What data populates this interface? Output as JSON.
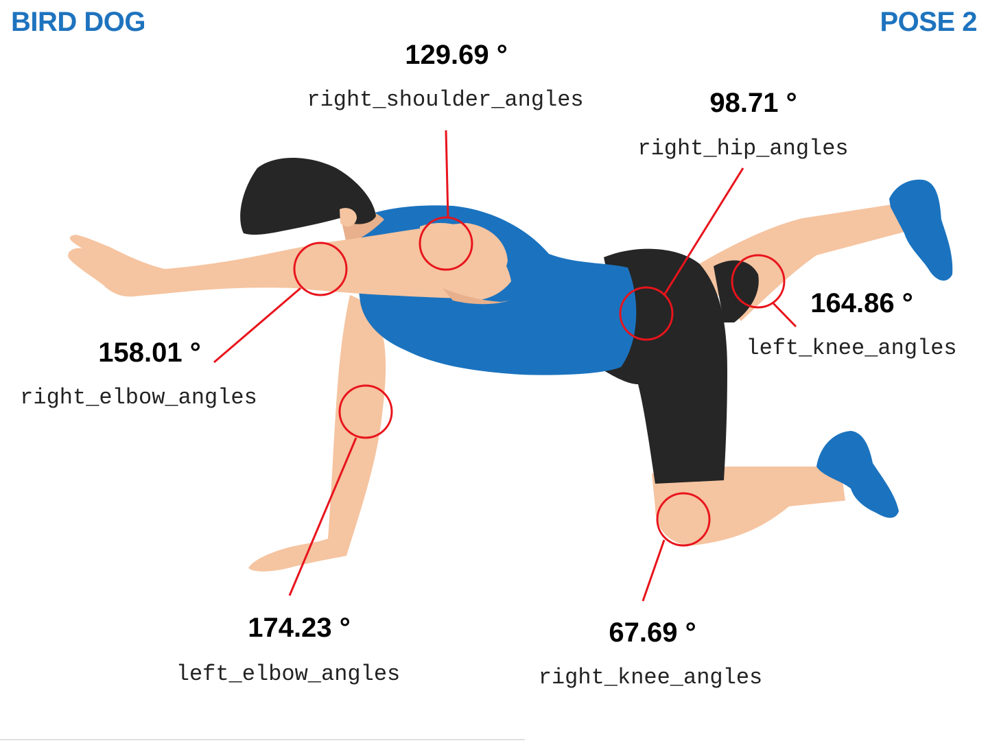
{
  "header": {
    "title": "BIRD DOG",
    "pose": "POSE 2"
  },
  "colors": {
    "title": "#1e73be",
    "marker": "#e8141c",
    "shirt": "#1b73bf",
    "shorts": "#262626",
    "skin": "#f5c4a0",
    "hair": "#262626",
    "shoes": "#1b73bf"
  },
  "angles": {
    "right_shoulder": {
      "value": "129.69 °",
      "label": "right_shoulder_angles"
    },
    "right_hip": {
      "value": "98.71 °",
      "label": "right_hip_angles"
    },
    "right_elbow": {
      "value": "158.01 °",
      "label": "right_elbow_angles"
    },
    "left_knee": {
      "value": "164.86 °",
      "label": "left_knee_angles"
    },
    "left_elbow": {
      "value": "174.23 °",
      "label": "left_elbow_angles"
    },
    "right_knee": {
      "value": "67.69 °",
      "label": "right_knee_angles"
    }
  }
}
